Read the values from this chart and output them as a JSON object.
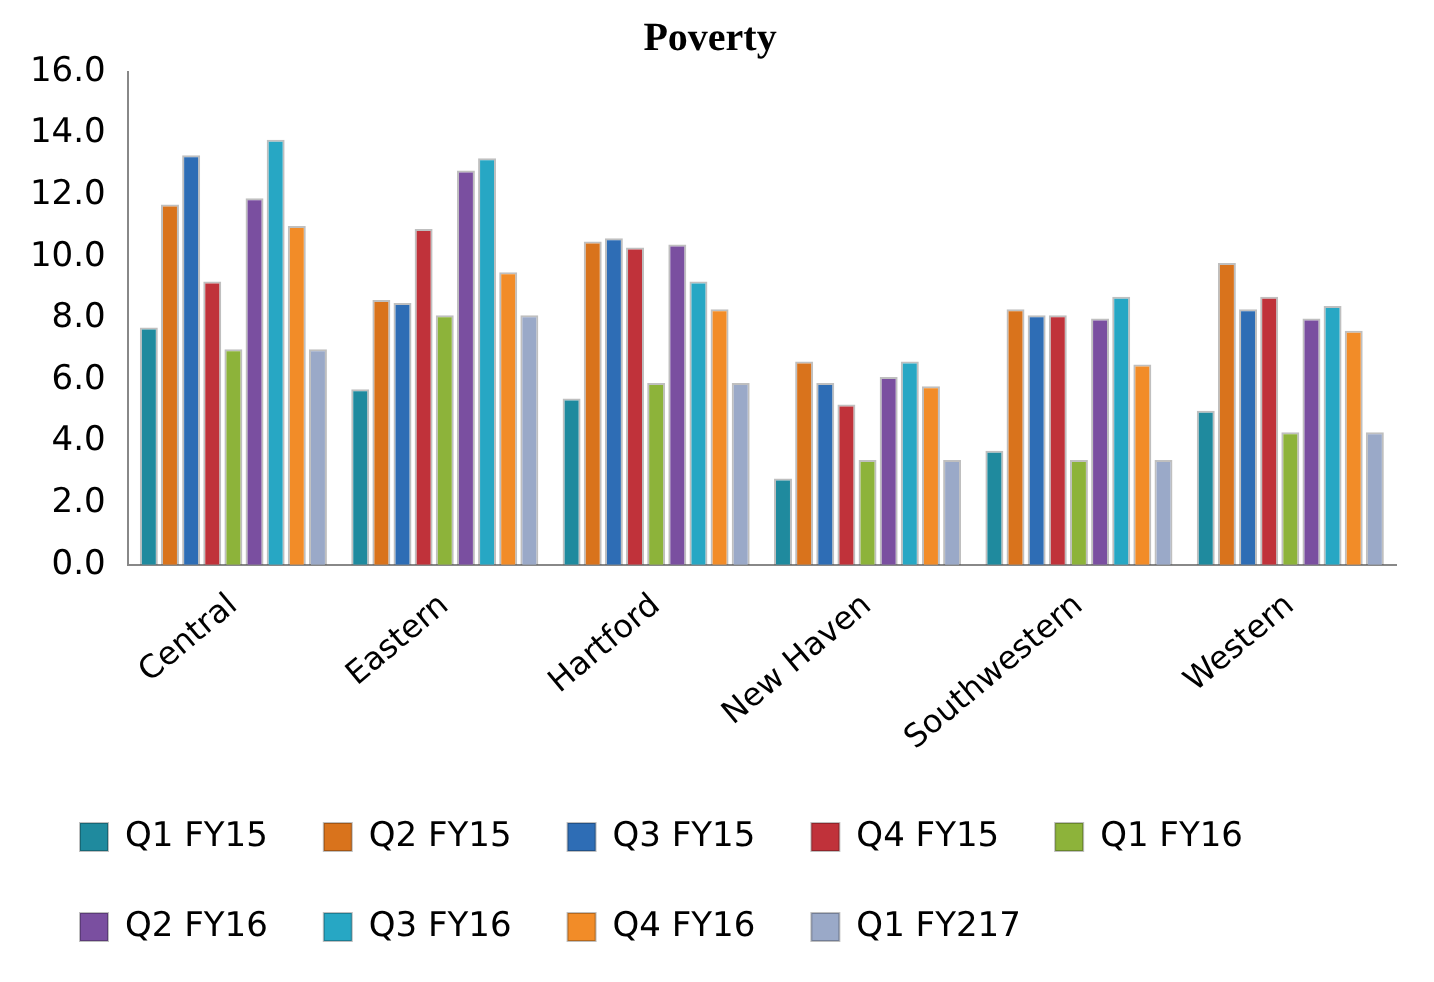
{
  "chart_data": {
    "type": "bar",
    "title": "Poverty",
    "categories": [
      "Central",
      "Eastern",
      "Hartford",
      "New Haven",
      "Southwestern",
      "Western"
    ],
    "series": [
      {
        "name": "Q1 FY15",
        "color": "#1f8a9e",
        "values": [
          7.7,
          5.7,
          5.4,
          2.8,
          3.7,
          5.0
        ]
      },
      {
        "name": "Q2 FY15",
        "color": "#d9731c",
        "values": [
          11.7,
          8.6,
          10.5,
          6.6,
          8.3,
          9.8
        ]
      },
      {
        "name": "Q3 FY15",
        "color": "#2e6db5",
        "values": [
          13.3,
          8.5,
          10.6,
          5.9,
          8.1,
          8.3
        ]
      },
      {
        "name": "Q4 FY15",
        "color": "#c0323a",
        "values": [
          9.2,
          10.9,
          10.3,
          5.2,
          8.1,
          8.7
        ]
      },
      {
        "name": "Q1 FY16",
        "color": "#8db33a",
        "values": [
          7.0,
          8.1,
          5.9,
          3.4,
          3.4,
          4.3
        ]
      },
      {
        "name": "Q2 FY16",
        "color": "#7a4fa0",
        "values": [
          11.9,
          12.8,
          10.4,
          6.1,
          8.0,
          8.0
        ]
      },
      {
        "name": "Q3 FY16",
        "color": "#27a7c4",
        "values": [
          13.8,
          13.2,
          9.2,
          6.6,
          8.7,
          8.4
        ]
      },
      {
        "name": "Q4 FY16",
        "color": "#f28c28",
        "values": [
          11.0,
          9.5,
          8.3,
          5.8,
          6.5,
          7.6
        ]
      },
      {
        "name": "Q1 FY217",
        "color": "#9aa9c8",
        "values": [
          7.0,
          8.1,
          5.9,
          3.4,
          3.4,
          4.3
        ]
      }
    ],
    "ylim": [
      0,
      16
    ],
    "yticks": [
      {
        "value": 0,
        "label": "0.0"
      },
      {
        "value": 2,
        "label": "2.0"
      },
      {
        "value": 4,
        "label": "4.0"
      },
      {
        "value": 6,
        "label": "6.0"
      },
      {
        "value": 8,
        "label": "8.0"
      },
      {
        "value": 10,
        "label": "10.0"
      },
      {
        "value": 12,
        "label": "12.0"
      },
      {
        "value": 14,
        "label": "14.0"
      },
      {
        "value": 16,
        "label": "16.0"
      }
    ],
    "grid": false,
    "legend": "bottom"
  }
}
